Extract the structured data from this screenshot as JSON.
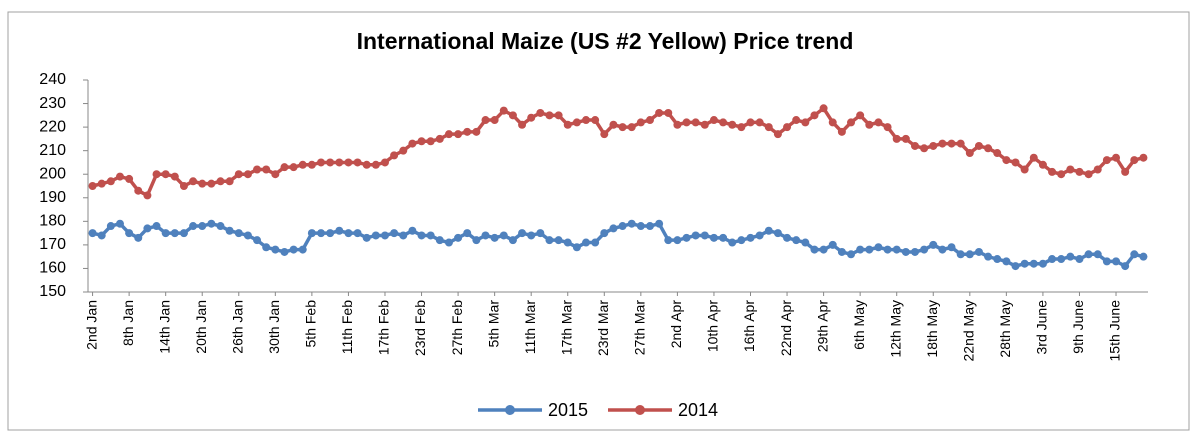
{
  "chart_data": {
    "type": "line",
    "title": "International Maize (US #2 Yellow) Price trend",
    "categories": [
      "2nd Jan",
      null,
      null,
      null,
      "8th Jan",
      null,
      null,
      null,
      "14th Jan",
      null,
      null,
      null,
      "20th Jan",
      null,
      null,
      null,
      "26th Jan",
      null,
      null,
      null,
      "30th Jan",
      null,
      null,
      null,
      "5th Feb",
      null,
      null,
      null,
      "11th Feb",
      null,
      null,
      null,
      "17th Feb",
      null,
      null,
      null,
      "23rd Feb",
      null,
      null,
      null,
      "27th Feb",
      null,
      null,
      null,
      "5th Mar",
      null,
      null,
      null,
      "11th Mar",
      null,
      null,
      null,
      "17th Mar",
      null,
      null,
      null,
      "23rd Mar",
      null,
      null,
      null,
      "27th Mar",
      null,
      null,
      null,
      "2nd Apr",
      null,
      null,
      null,
      "10th Apr",
      null,
      null,
      null,
      "16th Apr",
      null,
      null,
      null,
      "22nd Apr",
      null,
      null,
      null,
      "29th Apr",
      null,
      null,
      null,
      "6th May",
      null,
      null,
      null,
      "12th May",
      null,
      null,
      null,
      "18th May",
      null,
      null,
      null,
      "22nd May",
      null,
      null,
      null,
      "28th May",
      null,
      null,
      null,
      "3rd June",
      null,
      null,
      null,
      "9th June",
      null,
      null,
      null,
      "15th June",
      null,
      null,
      null
    ],
    "series": [
      {
        "name": "2015",
        "color": "#4f81bd",
        "values": [
          175,
          174,
          178,
          179,
          175,
          173,
          177,
          178,
          175,
          175,
          175,
          178,
          178,
          179,
          178,
          176,
          175,
          174,
          172,
          169,
          168,
          167,
          168,
          168,
          175,
          175,
          175,
          176,
          175,
          175,
          173,
          174,
          174,
          175,
          174,
          176,
          174,
          174,
          172,
          171,
          173,
          175,
          172,
          174,
          173,
          174,
          172,
          175,
          174,
          175,
          172,
          172,
          171,
          169,
          171,
          171,
          175,
          177,
          178,
          179,
          178,
          178,
          179,
          172,
          172,
          173,
          174,
          174,
          173,
          173,
          171,
          172,
          173,
          174,
          176,
          175,
          173,
          172,
          171,
          168,
          168,
          170,
          167,
          166,
          168,
          168,
          169,
          168,
          168,
          167,
          167,
          168,
          170,
          168,
          169,
          166,
          166,
          167,
          165,
          164,
          163,
          161,
          162,
          162,
          162,
          164,
          164,
          165,
          164,
          166,
          166,
          163,
          163,
          161,
          166,
          165
        ]
      },
      {
        "name": "2014",
        "color": "#c0504d",
        "values": [
          195,
          196,
          197,
          199,
          198,
          193,
          191,
          200,
          200,
          199,
          195,
          197,
          196,
          196,
          197,
          197,
          200,
          200,
          202,
          202,
          200,
          203,
          203,
          204,
          204,
          205,
          205,
          205,
          205,
          205,
          204,
          204,
          205,
          208,
          210,
          213,
          214,
          214,
          215,
          217,
          217,
          218,
          218,
          223,
          223,
          227,
          225,
          221,
          224,
          226,
          225,
          225,
          221,
          222,
          223,
          223,
          217,
          221,
          220,
          220,
          222,
          223,
          226,
          226,
          221,
          222,
          222,
          221,
          223,
          222,
          221,
          220,
          222,
          222,
          220,
          217,
          220,
          223,
          222,
          225,
          228,
          222,
          218,
          222,
          225,
          221,
          222,
          220,
          215,
          215,
          212,
          211,
          212,
          213,
          213,
          213,
          209,
          212,
          211,
          209,
          206,
          205,
          202,
          207,
          204,
          201,
          200,
          202,
          201,
          200,
          202,
          206,
          207,
          201,
          206,
          207
        ]
      }
    ],
    "ylim": [
      150,
      240
    ],
    "yticks": [
      150,
      160,
      170,
      180,
      190,
      200,
      210,
      220,
      230,
      240
    ],
    "grid": false,
    "legend": "bottom"
  }
}
